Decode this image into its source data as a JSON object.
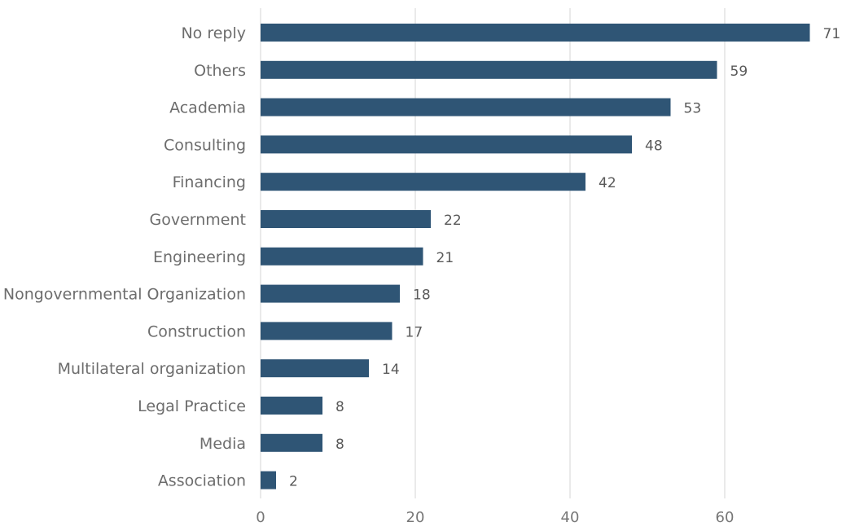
{
  "chart_data": {
    "type": "bar",
    "orientation": "horizontal",
    "categories": [
      "No reply",
      "Others",
      "Academia",
      "Consulting",
      "Financing",
      "Government",
      "Engineering",
      "Nongovernmental Organization",
      "Construction",
      "Multilateral organization",
      "Legal Practice",
      "Media",
      "Association"
    ],
    "values": [
      71,
      59,
      53,
      48,
      42,
      22,
      21,
      18,
      17,
      14,
      8,
      8,
      2
    ],
    "data_labels": [
      "71",
      "59",
      "53",
      "48",
      "42",
      "22",
      "21",
      "18",
      "17",
      "14",
      "8",
      "8",
      "2"
    ],
    "xlim": [
      0,
      74
    ],
    "x_ticks": [
      0,
      20,
      40,
      60
    ],
    "x_tick_labels": [
      "0",
      "20",
      "40",
      "60"
    ],
    "grid": true,
    "legend": "none",
    "colors": {
      "bar": "#2f5575",
      "grid": "#e3e3e3"
    }
  }
}
